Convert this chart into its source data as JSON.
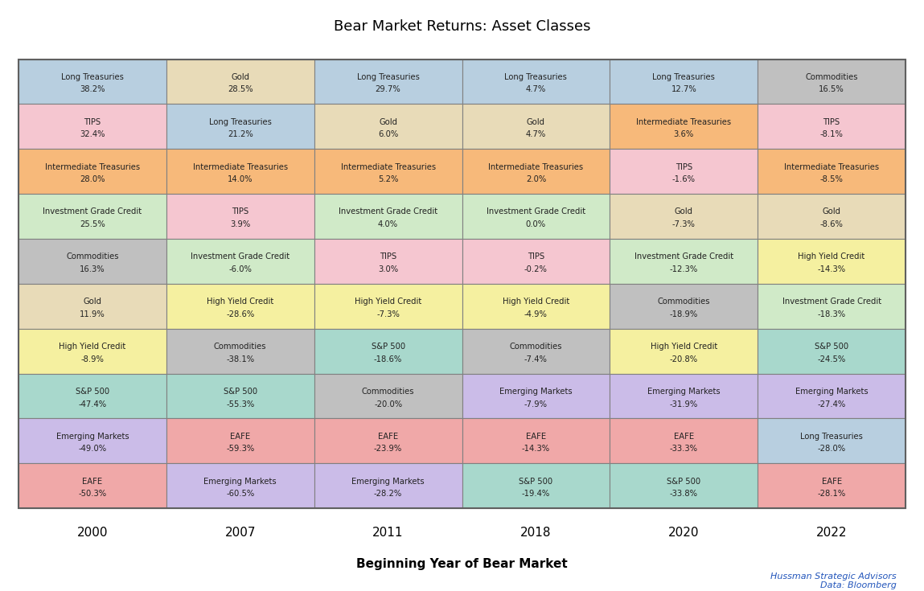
{
  "title": "Bear Market Returns: Asset Classes",
  "xlabel": "Beginning Year of Bear Market",
  "years": [
    "2000",
    "2007",
    "2011",
    "2018",
    "2020",
    "2022"
  ],
  "footnote_line1": "Hussman Strategic Advisors",
  "footnote_line2": "Data: Bloomberg",
  "asset_colors": {
    "Long Treasuries": "#b8cfe0",
    "TIPS": "#f5c6d0",
    "Intermediate Treasuries": "#f7b97a",
    "Investment Grade Credit": "#d0eac8",
    "Commodities": "#c0c0c0",
    "Gold": "#e8dbb8",
    "High Yield Credit": "#f5f0a0",
    "S&P 500": "#a8d8cc",
    "Emerging Markets": "#cbbce8",
    "EAFE": "#f0a8a8"
  },
  "grid": [
    [
      {
        "asset": "Long Treasuries",
        "value": "38.2%"
      },
      {
        "asset": "Gold",
        "value": "28.5%"
      },
      {
        "asset": "Long Treasuries",
        "value": "29.7%"
      },
      {
        "asset": "Long Treasuries",
        "value": "4.7%"
      },
      {
        "asset": "Long Treasuries",
        "value": "12.7%"
      },
      {
        "asset": "Commodities",
        "value": "16.5%"
      }
    ],
    [
      {
        "asset": "TIPS",
        "value": "32.4%"
      },
      {
        "asset": "Long Treasuries",
        "value": "21.2%"
      },
      {
        "asset": "Gold",
        "value": "6.0%"
      },
      {
        "asset": "Gold",
        "value": "4.7%"
      },
      {
        "asset": "Intermediate Treasuries",
        "value": "3.6%"
      },
      {
        "asset": "TIPS",
        "value": "-8.1%"
      }
    ],
    [
      {
        "asset": "Intermediate Treasuries",
        "value": "28.0%"
      },
      {
        "asset": "Intermediate Treasuries",
        "value": "14.0%"
      },
      {
        "asset": "Intermediate Treasuries",
        "value": "5.2%"
      },
      {
        "asset": "Intermediate Treasuries",
        "value": "2.0%"
      },
      {
        "asset": "TIPS",
        "value": "-1.6%"
      },
      {
        "asset": "Intermediate Treasuries",
        "value": "-8.5%"
      }
    ],
    [
      {
        "asset": "Investment Grade Credit",
        "value": "25.5%"
      },
      {
        "asset": "TIPS",
        "value": "3.9%"
      },
      {
        "asset": "Investment Grade Credit",
        "value": "4.0%"
      },
      {
        "asset": "Investment Grade Credit",
        "value": "0.0%"
      },
      {
        "asset": "Gold",
        "value": "-7.3%"
      },
      {
        "asset": "Gold",
        "value": "-8.6%"
      }
    ],
    [
      {
        "asset": "Commodities",
        "value": "16.3%"
      },
      {
        "asset": "Investment Grade Credit",
        "value": "-6.0%"
      },
      {
        "asset": "TIPS",
        "value": "3.0%"
      },
      {
        "asset": "TIPS",
        "value": "-0.2%"
      },
      {
        "asset": "Investment Grade Credit",
        "value": "-12.3%"
      },
      {
        "asset": "High Yield Credit",
        "value": "-14.3%"
      }
    ],
    [
      {
        "asset": "Gold",
        "value": "11.9%"
      },
      {
        "asset": "High Yield Credit",
        "value": "-28.6%"
      },
      {
        "asset": "High Yield Credit",
        "value": "-7.3%"
      },
      {
        "asset": "High Yield Credit",
        "value": "-4.9%"
      },
      {
        "asset": "Commodities",
        "value": "-18.9%"
      },
      {
        "asset": "Investment Grade Credit",
        "value": "-18.3%"
      }
    ],
    [
      {
        "asset": "High Yield Credit",
        "value": "-8.9%"
      },
      {
        "asset": "Commodities",
        "value": "-38.1%"
      },
      {
        "asset": "S&P 500",
        "value": "-18.6%"
      },
      {
        "asset": "Commodities",
        "value": "-7.4%"
      },
      {
        "asset": "High Yield Credit",
        "value": "-20.8%"
      },
      {
        "asset": "S&P 500",
        "value": "-24.5%"
      }
    ],
    [
      {
        "asset": "S&P 500",
        "value": "-47.4%"
      },
      {
        "asset": "S&P 500",
        "value": "-55.3%"
      },
      {
        "asset": "Commodities",
        "value": "-20.0%"
      },
      {
        "asset": "Emerging Markets",
        "value": "-7.9%"
      },
      {
        "asset": "Emerging Markets",
        "value": "-31.9%"
      },
      {
        "asset": "Emerging Markets",
        "value": "-27.4%"
      }
    ],
    [
      {
        "asset": "Emerging Markets",
        "value": "-49.0%"
      },
      {
        "asset": "EAFE",
        "value": "-59.3%"
      },
      {
        "asset": "EAFE",
        "value": "-23.9%"
      },
      {
        "asset": "EAFE",
        "value": "-14.3%"
      },
      {
        "asset": "EAFE",
        "value": "-33.3%"
      },
      {
        "asset": "Long Treasuries",
        "value": "-28.0%"
      }
    ],
    [
      {
        "asset": "EAFE",
        "value": "-50.3%"
      },
      {
        "asset": "Emerging Markets",
        "value": "-60.5%"
      },
      {
        "asset": "Emerging Markets",
        "value": "-28.2%"
      },
      {
        "asset": "S&P 500",
        "value": "-19.4%"
      },
      {
        "asset": "S&P 500",
        "value": "-33.8%"
      },
      {
        "asset": "EAFE",
        "value": "-28.1%"
      }
    ]
  ]
}
